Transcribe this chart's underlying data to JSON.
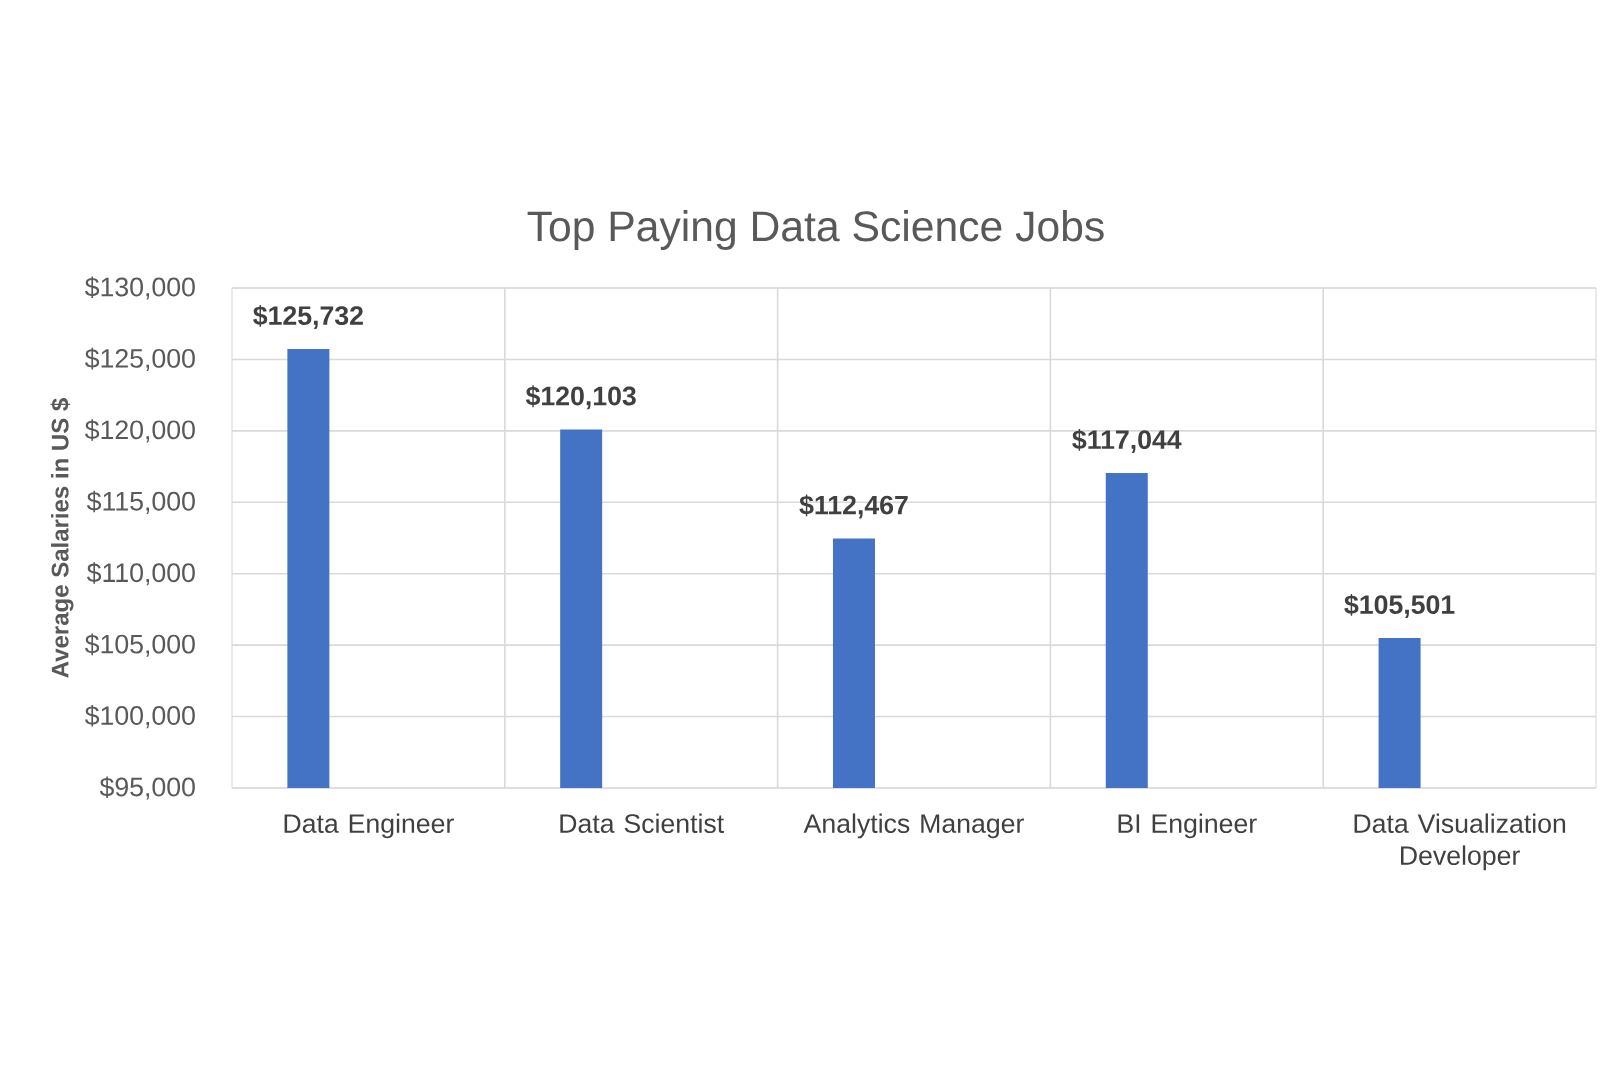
{
  "chart_data": {
    "type": "bar",
    "title": "Top Paying Data Science Jobs",
    "ylabel": "Average Salaries in US $",
    "categories": [
      "Data Engineer",
      "Data Scientist",
      "Analytics Manager",
      "BI Engineer",
      "Data Visualization Developer"
    ],
    "values": [
      125732,
      120103,
      112467,
      117044,
      105501
    ],
    "value_labels": [
      "$125,732",
      "$120,103",
      "$112,467",
      "$117,044",
      "$105,501"
    ],
    "color": "#4472c4",
    "ylim": [
      95000,
      130000
    ],
    "yticks": [
      {
        "value": 95000,
        "label": "$95,000"
      },
      {
        "value": 100000,
        "label": "$100,000"
      },
      {
        "value": 105000,
        "label": "$105,000"
      },
      {
        "value": 110000,
        "label": "$110,000"
      },
      {
        "value": 115000,
        "label": "$115,000"
      },
      {
        "value": 120000,
        "label": "$120,000"
      },
      {
        "value": 125000,
        "label": "$125,000"
      },
      {
        "value": 130000,
        "label": "$130,000"
      }
    ],
    "grid": true
  }
}
